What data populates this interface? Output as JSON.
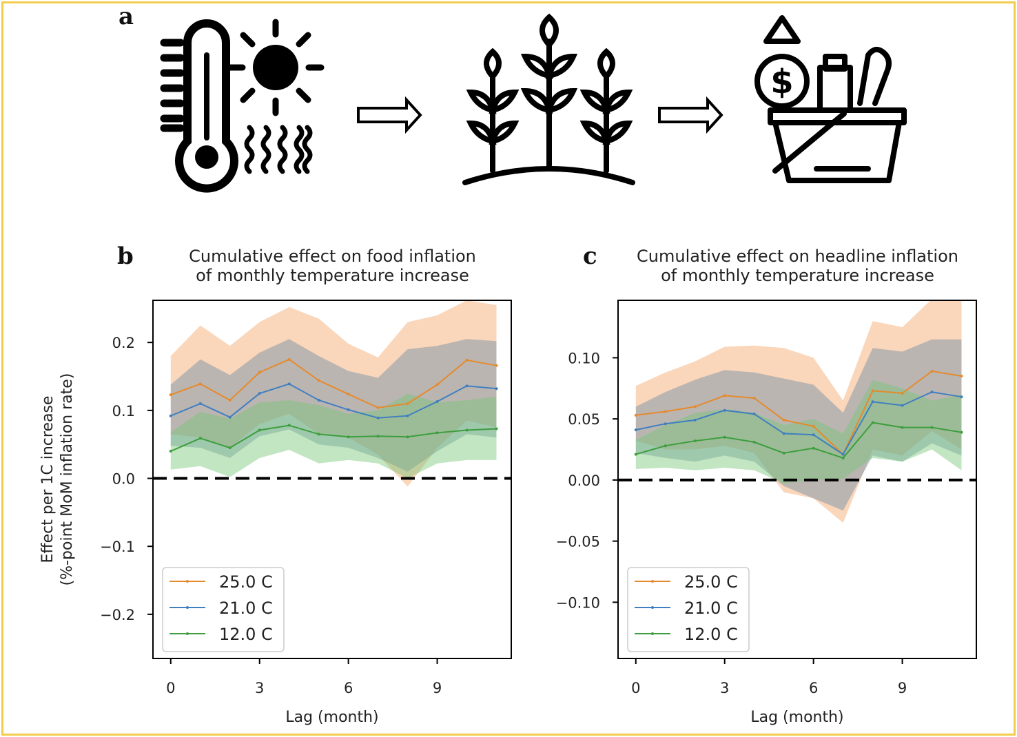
{
  "panels": {
    "a": "a",
    "b": "b",
    "c": "c"
  },
  "illustration": {
    "icons": [
      "thermometer-icon",
      "sun-icon",
      "heat-waves-icon",
      "arrow-right-icon",
      "crops-icon",
      "arrow-right-icon",
      "price-up-icon",
      "dollar-coin-icon",
      "grocery-basket-icon"
    ]
  },
  "colors": {
    "c25": "#e58a2c",
    "c21": "#3f7fbf",
    "c12": "#3d9e3d",
    "band25": "#f3a565",
    "band21": "#6e8fa8",
    "band12": "#77c577",
    "frame": "#f3cc4d"
  },
  "chart_data": [
    {
      "type": "line",
      "title_lines": [
        "Cumulative effect on food inflation",
        "of monthly temperature increase"
      ],
      "xlabel": "Lag (month)",
      "ylabel_lines": [
        "Effect per 1C increase",
        "(%-point MoM inflation rate)"
      ],
      "xlim": [
        -0.6,
        11.5
      ],
      "ylim": [
        -0.265,
        0.262
      ],
      "xticks": [
        0,
        3,
        6,
        9
      ],
      "yticks": [
        0.2,
        0.1,
        0.0,
        -0.1,
        -0.2
      ],
      "ytick_labels": [
        "0.2",
        "0.1",
        "0.0",
        "−0.1",
        "−0.2"
      ],
      "x": [
        0,
        1,
        2,
        3,
        4,
        5,
        6,
        7,
        8,
        9,
        10,
        11
      ],
      "zero_line": true,
      "legend": "lower-left",
      "series": [
        {
          "name": "25.0 C",
          "color_key": "c25",
          "band_key": "band25",
          "values": [
            0.123,
            0.139,
            0.115,
            0.156,
            0.175,
            0.144,
            0.124,
            0.104,
            0.11,
            0.138,
            0.174,
            0.166
          ],
          "lower": [
            0.065,
            0.06,
            0.045,
            0.08,
            0.095,
            0.065,
            0.06,
            0.035,
            -0.012,
            0.045,
            0.085,
            0.075
          ],
          "upper": [
            0.18,
            0.225,
            0.195,
            0.23,
            0.252,
            0.235,
            0.198,
            0.178,
            0.23,
            0.24,
            0.262,
            0.255
          ]
        },
        {
          "name": "21.0 C",
          "color_key": "c21",
          "band_key": "band21",
          "values": [
            0.092,
            0.11,
            0.09,
            0.125,
            0.139,
            0.115,
            0.101,
            0.089,
            0.092,
            0.113,
            0.136,
            0.132
          ],
          "lower": [
            0.048,
            0.045,
            0.03,
            0.062,
            0.072,
            0.05,
            0.045,
            0.03,
            0.01,
            0.04,
            0.065,
            0.06
          ],
          "upper": [
            0.138,
            0.175,
            0.152,
            0.185,
            0.205,
            0.18,
            0.158,
            0.148,
            0.19,
            0.195,
            0.205,
            0.202
          ]
        },
        {
          "name": "12.0 C",
          "color_key": "c12",
          "band_key": "band12",
          "values": [
            0.04,
            0.059,
            0.045,
            0.071,
            0.078,
            0.065,
            0.061,
            0.062,
            0.061,
            0.067,
            0.071,
            0.073
          ],
          "lower": [
            0.013,
            0.018,
            0.002,
            0.03,
            0.042,
            0.022,
            0.027,
            0.022,
            0.0,
            0.022,
            0.027,
            0.027
          ],
          "upper": [
            0.068,
            0.098,
            0.088,
            0.112,
            0.115,
            0.108,
            0.095,
            0.1,
            0.125,
            0.112,
            0.115,
            0.12
          ]
        }
      ]
    },
    {
      "type": "line",
      "title_lines": [
        "Cumulative effect on headline inflation",
        "of monthly temperature increase"
      ],
      "xlabel": "Lag (month)",
      "ylabel_lines": [],
      "xlim": [
        -0.6,
        11.5
      ],
      "ylim": [
        -0.146,
        0.147
      ],
      "xticks": [
        0,
        3,
        6,
        9
      ],
      "yticks": [
        0.1,
        0.05,
        0.0,
        -0.05,
        -0.1
      ],
      "ytick_labels": [
        "0.10",
        "0.05",
        "0.00",
        "−0.05",
        "−0.10"
      ],
      "x": [
        0,
        1,
        2,
        3,
        4,
        5,
        6,
        7,
        8,
        9,
        10,
        11
      ],
      "zero_line": true,
      "legend": "lower-left",
      "series": [
        {
          "name": "25.0 C",
          "color_key": "c25",
          "band_key": "band25",
          "values": [
            0.053,
            0.056,
            0.06,
            0.069,
            0.067,
            0.049,
            0.044,
            0.021,
            0.073,
            0.071,
            0.089,
            0.085
          ],
          "lower": [
            0.032,
            0.025,
            0.025,
            0.028,
            0.022,
            -0.01,
            -0.015,
            -0.035,
            0.025,
            0.02,
            0.04,
            0.025
          ],
          "upper": [
            0.077,
            0.088,
            0.097,
            0.109,
            0.11,
            0.108,
            0.1,
            0.065,
            0.13,
            0.125,
            0.148,
            0.15
          ]
        },
        {
          "name": "21.0 C",
          "color_key": "c21",
          "band_key": "band21",
          "values": [
            0.041,
            0.046,
            0.049,
            0.057,
            0.054,
            0.038,
            0.037,
            0.021,
            0.064,
            0.061,
            0.072,
            0.068
          ],
          "lower": [
            0.022,
            0.018,
            0.015,
            0.02,
            0.015,
            -0.005,
            -0.015,
            -0.025,
            0.02,
            0.015,
            0.03,
            0.02
          ],
          "upper": [
            0.06,
            0.072,
            0.082,
            0.09,
            0.088,
            0.083,
            0.078,
            0.055,
            0.108,
            0.105,
            0.115,
            0.115
          ]
        },
        {
          "name": "12.0 C",
          "color_key": "c12",
          "band_key": "band12",
          "values": [
            0.021,
            0.028,
            0.032,
            0.035,
            0.031,
            0.022,
            0.026,
            0.018,
            0.047,
            0.043,
            0.043,
            0.039
          ],
          "lower": [
            0.009,
            0.01,
            0.008,
            0.01,
            0.008,
            -0.003,
            0.0,
            0.001,
            0.018,
            0.015,
            0.025,
            0.008
          ],
          "upper": [
            0.033,
            0.045,
            0.055,
            0.058,
            0.055,
            0.045,
            0.05,
            0.038,
            0.082,
            0.075,
            0.065,
            0.07
          ]
        }
      ]
    }
  ]
}
